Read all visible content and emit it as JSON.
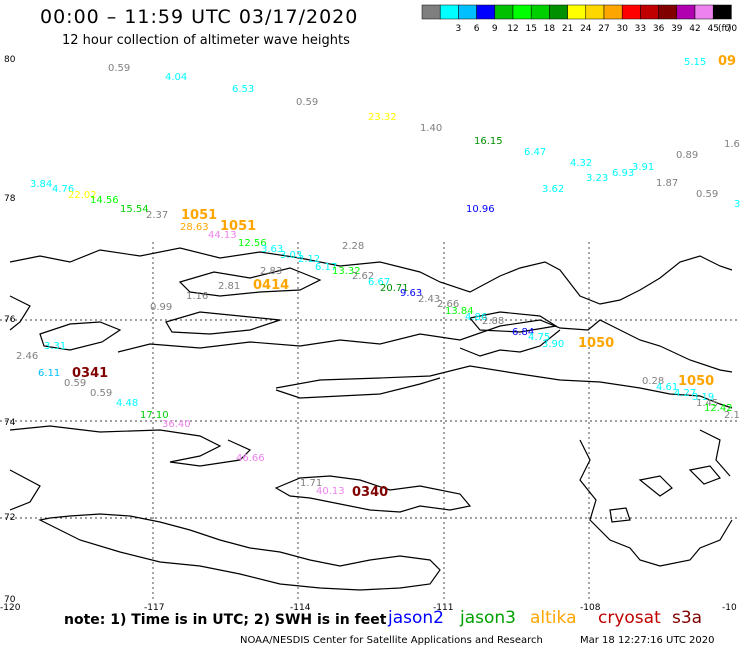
{
  "header": {
    "title": "00:00 – 11:59 UTC 03/17/2020",
    "subtitle": "12 hour collection of altimeter wave heights"
  },
  "legend": {
    "unit": "(ft)",
    "entries": [
      {
        "label": "",
        "color": "#7f7f7f"
      },
      {
        "label": "3",
        "color": "#00ffff"
      },
      {
        "label": "6",
        "color": "#00bfff"
      },
      {
        "label": "9",
        "color": "#0000ff"
      },
      {
        "label": "12",
        "color": "#00c000"
      },
      {
        "label": "15",
        "color": "#00ff00"
      },
      {
        "label": "18",
        "color": "#00d000"
      },
      {
        "label": "21",
        "color": "#009000"
      },
      {
        "label": "24",
        "color": "#ffff00"
      },
      {
        "label": "27",
        "color": "#ffd700"
      },
      {
        "label": "30",
        "color": "#ffa500"
      },
      {
        "label": "33",
        "color": "#ff0000"
      },
      {
        "label": "36",
        "color": "#c00000"
      },
      {
        "label": "39",
        "color": "#800000"
      },
      {
        "label": "42",
        "color": "#b000b0"
      },
      {
        "label": "45",
        "color": "#ee82ee"
      },
      {
        "label": "70",
        "color": "#000000"
      }
    ]
  },
  "axes": {
    "lat_labels": [
      "80",
      "78",
      "76",
      "74",
      "72",
      "70"
    ],
    "lon_labels": [
      "-120",
      "-117",
      "-114",
      "-111",
      "-108",
      "-10"
    ]
  },
  "observations": [
    {
      "text": "5.15",
      "color": "#00ffff"
    },
    {
      "text": "09",
      "color": "#ffa500"
    },
    {
      "text": "0.59",
      "color": "#808080"
    },
    {
      "text": "4.04",
      "color": "#00ffff"
    },
    {
      "text": "6.53",
      "color": "#00ffff"
    },
    {
      "text": "0.59",
      "color": "#808080"
    },
    {
      "text": "23.32",
      "color": "#ffff00"
    },
    {
      "text": "1.40",
      "color": "#808080"
    },
    {
      "text": "16.15",
      "color": "#009000"
    },
    {
      "text": "6.47",
      "color": "#00ffff"
    },
    {
      "text": "4.32",
      "color": "#00ffff"
    },
    {
      "text": "6.93",
      "color": "#00ffff"
    },
    {
      "text": "3.91",
      "color": "#00ffff"
    },
    {
      "text": "0.89",
      "color": "#808080"
    },
    {
      "text": "1.6",
      "color": "#808080"
    },
    {
      "text": "3.23",
      "color": "#00ffff"
    },
    {
      "text": "3.62",
      "color": "#00ffff"
    },
    {
      "text": "1.87",
      "color": "#808080"
    },
    {
      "text": "0.59",
      "color": "#808080"
    },
    {
      "text": "3",
      "color": "#00ffff"
    },
    {
      "text": "3.84",
      "color": "#00ffff"
    },
    {
      "text": "4.76",
      "color": "#00ffff"
    },
    {
      "text": "22.02",
      "color": "#ffff00"
    },
    {
      "text": "14.56",
      "color": "#00ff00"
    },
    {
      "text": "15.54",
      "color": "#00d000"
    },
    {
      "text": "2.37",
      "color": "#808080"
    },
    {
      "text": "1051",
      "color": "#ffa500"
    },
    {
      "text": "28.63",
      "color": "#ffa500"
    },
    {
      "text": "1051",
      "color": "#ffa500"
    },
    {
      "text": "44.13",
      "color": "#ee82ee"
    },
    {
      "text": "10.96",
      "color": "#0000ff"
    },
    {
      "text": "12.56",
      "color": "#00ff00"
    },
    {
      "text": "3.63",
      "color": "#00ffff"
    },
    {
      "text": "2.28",
      "color": "#808080"
    },
    {
      "text": "3.03",
      "color": "#00ffff"
    },
    {
      "text": "2.12",
      "color": "#00ffff"
    },
    {
      "text": "6.17",
      "color": "#00ffff"
    },
    {
      "text": "13.32",
      "color": "#00ff00"
    },
    {
      "text": "2.62",
      "color": "#808080"
    },
    {
      "text": "2.83",
      "color": "#808080"
    },
    {
      "text": "2.81",
      "color": "#808080"
    },
    {
      "text": "0414",
      "color": "#ffa500"
    },
    {
      "text": "6.67",
      "color": "#00ffff"
    },
    {
      "text": "20.71",
      "color": "#009000"
    },
    {
      "text": "9.63",
      "color": "#0000ff"
    },
    {
      "text": "1.16",
      "color": "#808080"
    },
    {
      "text": "2.43",
      "color": "#808080"
    },
    {
      "text": "2.66",
      "color": "#808080"
    },
    {
      "text": "0.99",
      "color": "#808080"
    },
    {
      "text": "13.84",
      "color": "#00ff00"
    },
    {
      "text": "4.86",
      "color": "#00ffff"
    },
    {
      "text": "2.88",
      "color": "#808080"
    },
    {
      "text": "6.84",
      "color": "#0000ff"
    },
    {
      "text": "4.75",
      "color": "#00ffff"
    },
    {
      "text": "3.90",
      "color": "#00ffff"
    },
    {
      "text": "1050",
      "color": "#ffa500"
    },
    {
      "text": "3.31",
      "color": "#00ffff"
    },
    {
      "text": "2.46",
      "color": "#808080"
    },
    {
      "text": "6.11",
      "color": "#00bfff"
    },
    {
      "text": "0341",
      "color": "#800000"
    },
    {
      "text": "0.59",
      "color": "#808080"
    },
    {
      "text": "0.59",
      "color": "#808080"
    },
    {
      "text": "4.48",
      "color": "#00ffff"
    },
    {
      "text": "17.10",
      "color": "#00d000"
    },
    {
      "text": "36.40",
      "color": "#ee82ee"
    },
    {
      "text": "0.28",
      "color": "#808080"
    },
    {
      "text": "1050",
      "color": "#ffa500"
    },
    {
      "text": "4.61",
      "color": "#00ffff"
    },
    {
      "text": "4.27",
      "color": "#00ffff"
    },
    {
      "text": "3.19",
      "color": "#00ffff"
    },
    {
      "text": "1.45",
      "color": "#808080"
    },
    {
      "text": "12.42",
      "color": "#00ff00"
    },
    {
      "text": "2.1",
      "color": "#808080"
    },
    {
      "text": "46.66",
      "color": "#ee82ee"
    },
    {
      "text": "1.71",
      "color": "#808080"
    },
    {
      "text": "40.13",
      "color": "#ee82ee"
    },
    {
      "text": "0340",
      "color": "#800000"
    }
  ],
  "footer": {
    "note": "note: 1) Time is in UTC; 2) SWH is in feet",
    "satellites": [
      {
        "name": "jason2",
        "color": "#0000ff"
      },
      {
        "name": "jason3",
        "color": "#00a000"
      },
      {
        "name": "altika",
        "color": "#ffa500"
      },
      {
        "name": "cryosat",
        "color": "#c00000"
      },
      {
        "name": "s3a",
        "color": "#800000"
      }
    ],
    "credit": "NOAA/NESDIS Center for Satellite Applications and Research",
    "timestamp": "Mar 18 12:27:16 UTC 2020"
  }
}
